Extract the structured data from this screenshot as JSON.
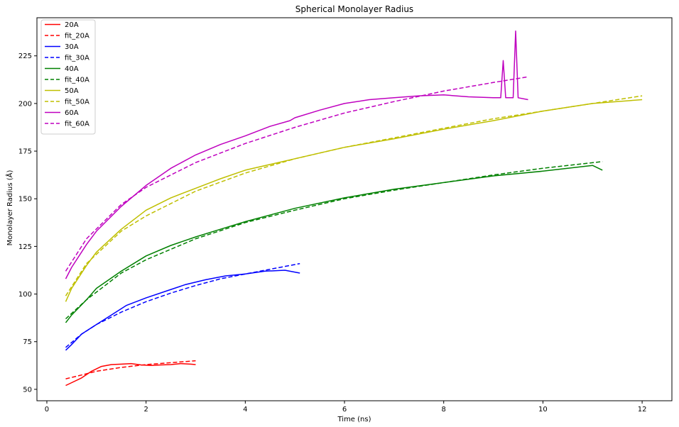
{
  "chart_data": {
    "type": "line",
    "title": "Spherical Monolayer Radius",
    "xlabel": "Time (ns)",
    "ylabel": "Monolayer Radius (Å)",
    "xlim": [
      -0.2,
      12.6
    ],
    "ylim": [
      44,
      245
    ],
    "xticks": [
      0,
      2,
      4,
      6,
      8,
      10,
      12
    ],
    "yticks": [
      50,
      75,
      100,
      125,
      150,
      175,
      200,
      225
    ],
    "grid": false,
    "legend_position": "top-left",
    "series": [
      {
        "name": "20A",
        "color": "#ff0000",
        "style": "solid",
        "x": [
          0.38,
          0.5,
          0.7,
          0.9,
          1.1,
          1.3,
          1.5,
          1.7,
          1.9,
          2.1,
          2.3,
          2.5,
          2.7,
          2.9,
          3.0
        ],
        "y": [
          52,
          53.5,
          56,
          59.5,
          62,
          63,
          63.2,
          63.5,
          62.8,
          62.5,
          62.8,
          63,
          63.5,
          63.2,
          63
        ]
      },
      {
        "name": "fit_20A",
        "color": "#ff0000",
        "style": "dashed",
        "x": [
          0.38,
          0.7,
          1.0,
          1.5,
          2.0,
          2.5,
          3.0
        ],
        "y": [
          55.5,
          57.5,
          59.5,
          61.5,
          63,
          64,
          65
        ]
      },
      {
        "name": "30A",
        "color": "#0000ff",
        "style": "solid",
        "x": [
          0.38,
          0.5,
          0.7,
          1.0,
          1.3,
          1.6,
          2.0,
          2.4,
          2.8,
          3.2,
          3.6,
          4.0,
          4.4,
          4.8,
          5.1
        ],
        "y": [
          70.5,
          73.5,
          79,
          84,
          89,
          94,
          98,
          101.5,
          105,
          107.5,
          109.5,
          110.5,
          112,
          112.5,
          111
        ]
      },
      {
        "name": "fit_30A",
        "color": "#0000ff",
        "style": "dashed",
        "x": [
          0.38,
          0.7,
          1.0,
          1.5,
          2.0,
          2.5,
          3.0,
          3.5,
          4.0,
          4.5,
          5.1
        ],
        "y": [
          72,
          79,
          84,
          90.5,
          96,
          100.5,
          104.5,
          108,
          110.5,
          113,
          116
        ]
      },
      {
        "name": "40A",
        "color": "#008000",
        "style": "solid",
        "x": [
          0.38,
          0.5,
          0.8,
          1.0,
          1.5,
          2.0,
          2.5,
          3.0,
          3.5,
          4.0,
          5.0,
          6.0,
          7.0,
          8.0,
          9.0,
          10.0,
          11.0,
          11.2
        ],
        "y": [
          85,
          89,
          97,
          103,
          112,
          120,
          125.5,
          130,
          134,
          138,
          145,
          150.5,
          155,
          158.5,
          162,
          164.5,
          167.5,
          165
        ]
      },
      {
        "name": "fit_40A",
        "color": "#008000",
        "style": "dashed",
        "x": [
          0.38,
          0.8,
          1.5,
          2.0,
          3.0,
          4.0,
          5.0,
          6.0,
          7.0,
          8.0,
          9.0,
          10.0,
          11.2
        ],
        "y": [
          87,
          97,
          111,
          118,
          129,
          137.5,
          144,
          150,
          154.5,
          158.5,
          162.5,
          166,
          169.5
        ]
      },
      {
        "name": "50A",
        "color": "#bfbf00",
        "style": "solid",
        "x": [
          0.38,
          0.5,
          0.8,
          1.0,
          1.5,
          2.0,
          2.5,
          3.0,
          3.5,
          4.0,
          5.0,
          6.0,
          7.0,
          8.0,
          9.0,
          10.0,
          11.0,
          12.0
        ],
        "y": [
          96,
          103,
          115,
          122,
          134,
          144,
          150.5,
          155.5,
          160.5,
          165,
          171,
          177,
          181.5,
          186.5,
          191,
          196,
          200,
          202
        ]
      },
      {
        "name": "fit_50A",
        "color": "#bfbf00",
        "style": "dashed",
        "x": [
          0.38,
          0.8,
          1.5,
          2.0,
          3.0,
          4.0,
          5.0,
          6.0,
          7.0,
          8.0,
          9.0,
          10.0,
          11.0,
          12.0
        ],
        "y": [
          99,
          116,
          133,
          141,
          154,
          163.5,
          171,
          177,
          182,
          187,
          192,
          196,
          200,
          204
        ]
      },
      {
        "name": "60A",
        "color": "#bf00bf",
        "style": "solid",
        "x": [
          0.38,
          0.5,
          0.8,
          1.0,
          1.5,
          2.0,
          2.5,
          3.0,
          3.5,
          4.0,
          4.5,
          4.9,
          5.0,
          5.5,
          6.0,
          6.5,
          7.0,
          7.5,
          8.0,
          8.5,
          9.0,
          9.15,
          9.2,
          9.25,
          9.4,
          9.45,
          9.5,
          9.7
        ],
        "y": [
          108,
          114,
          126,
          133,
          146,
          157,
          166,
          173,
          178.5,
          183,
          188,
          191,
          192.5,
          196.5,
          200,
          202,
          203,
          204,
          204.5,
          203.5,
          203,
          203,
          222.5,
          203,
          203,
          238,
          203,
          202
        ]
      },
      {
        "name": "fit_60A",
        "color": "#bf00bf",
        "style": "dashed",
        "x": [
          0.38,
          0.8,
          1.5,
          2.0,
          3.0,
          4.0,
          5.0,
          6.0,
          7.0,
          8.0,
          9.0,
          9.7
        ],
        "y": [
          112,
          129,
          147,
          156,
          169,
          179,
          187.5,
          195,
          201,
          206.5,
          211,
          214
        ]
      }
    ]
  }
}
